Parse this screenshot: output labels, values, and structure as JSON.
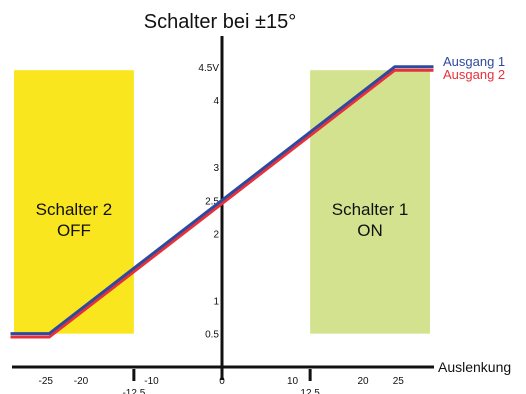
{
  "chart_data": {
    "type": "line",
    "title": "Schalter bei  ±15°",
    "xlabel": "Auslenkung",
    "ylabel": "",
    "xlim": [
      -30,
      30
    ],
    "ylim": [
      0,
      4.75
    ],
    "grid": false,
    "legend_position": "top-right",
    "x_ticks": [
      "-25",
      "-20",
      "-10",
      "0",
      "10",
      "20",
      "25"
    ],
    "x_ticks_low": [
      "-12.5",
      "12.5"
    ],
    "y_ticks": [
      "0.5",
      "1",
      "2",
      "2.5",
      "3",
      "4",
      "4.5V"
    ],
    "zones": [
      {
        "line1": "Schalter 2",
        "line2": "OFF",
        "x_from": -29.5,
        "x_to": -12.5,
        "y_from": 0.5,
        "y_to": 4.45,
        "color": "#fae61f"
      },
      {
        "line1": "Schalter 1",
        "line2": "ON",
        "x_from": 12.5,
        "x_to": 29.5,
        "y_from": 0.5,
        "y_to": 4.45,
        "color": "#d3e28e"
      }
    ],
    "series": [
      {
        "name": "Ausgang 2",
        "color": "#e8303a",
        "x": [
          -30,
          -24.5,
          24.5,
          30
        ],
        "y": [
          0.45,
          0.45,
          4.45,
          4.45
        ]
      },
      {
        "name": "Ausgang 1",
        "color": "#2e4a9e",
        "x": [
          -30,
          -24.5,
          24.5,
          30
        ],
        "y": [
          0.5,
          0.5,
          4.5,
          4.5
        ]
      }
    ]
  }
}
